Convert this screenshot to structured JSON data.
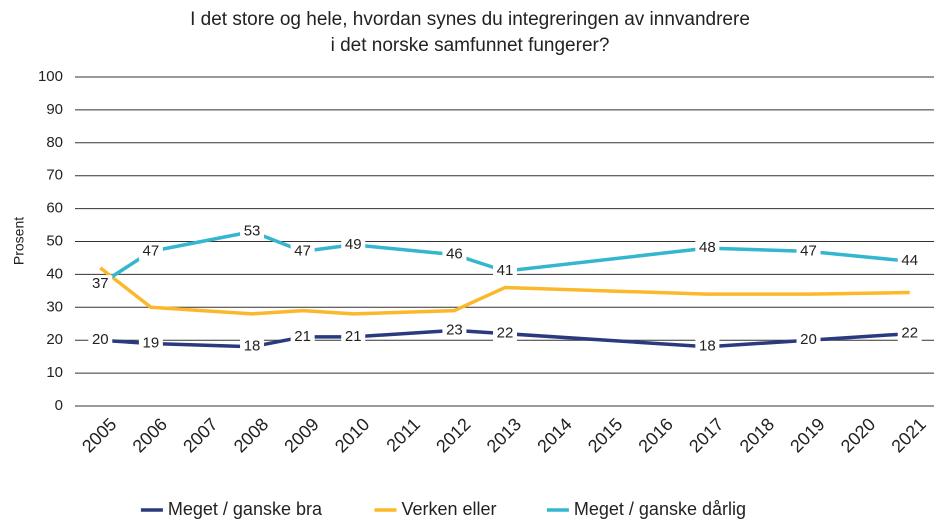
{
  "chart_data": {
    "type": "line",
    "title": [
      "I det store og hele, hvordan synes du integreringen av innvandrere",
      "i det norske samfunnet fungerer?"
    ],
    "ylabel": "Prosent",
    "x": [
      2005,
      2006,
      2008,
      2009,
      2010,
      2012,
      2013,
      2017,
      2019,
      2021
    ],
    "xlim": [
      2004.5,
      2021.5
    ],
    "xticks": [
      2005,
      2006,
      2007,
      2008,
      2009,
      2010,
      2011,
      2012,
      2013,
      2014,
      2015,
      2016,
      2017,
      2018,
      2019,
      2020,
      2021
    ],
    "ylim": [
      0,
      100
    ],
    "yticks": [
      0,
      10,
      20,
      30,
      40,
      50,
      60,
      70,
      80,
      90,
      100
    ],
    "grid": true,
    "legend": "bottom",
    "series": [
      {
        "name": "Meget / ganske bra",
        "color": "#2b3a7e",
        "data_labels": true,
        "values": [
          20,
          19,
          18,
          21,
          21,
          23,
          22,
          18,
          20,
          22
        ]
      },
      {
        "name": "Verken eller",
        "color": "#fbb82a",
        "data_labels": false,
        "values": [
          42,
          30,
          28,
          29,
          28,
          29,
          36,
          34,
          34,
          34.5
        ]
      },
      {
        "name": "Meget / ganske dårlig",
        "color": "#35b6cf",
        "data_labels": true,
        "values": [
          37,
          47,
          53,
          47,
          49,
          46,
          41,
          48,
          47,
          44
        ]
      }
    ]
  }
}
